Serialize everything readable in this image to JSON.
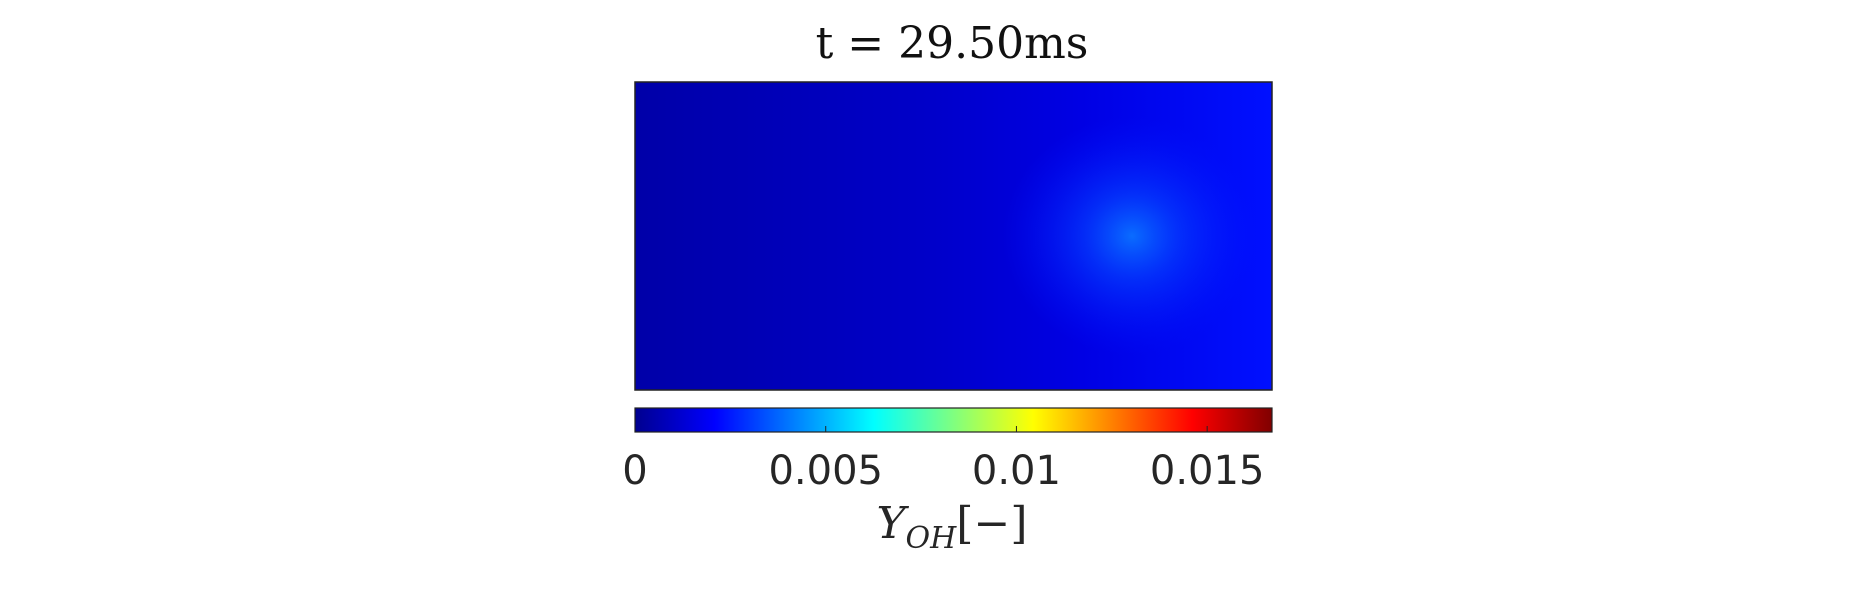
{
  "chart_data": {
    "type": "heatmap",
    "title": "t = 29.50ms",
    "field_description_visible": false,
    "background_value": 0.0015,
    "hotspot": {
      "peak_value": 0.0035,
      "x": 0.78,
      "y": 0.5
    },
    "colorbar": {
      "colormap": "jet",
      "range": [
        0,
        0.0167
      ],
      "ticks": [
        0,
        0.005,
        0.01,
        0.015
      ],
      "tick_labels": [
        "0",
        "0.005",
        "0.01",
        "0.015"
      ],
      "label_main": "Y",
      "label_sub": "OH",
      "label_unit": "[−]"
    },
    "axes_visible": false
  }
}
